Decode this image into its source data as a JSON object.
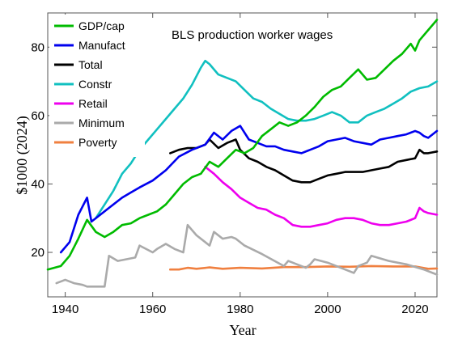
{
  "chart_data": {
    "type": "line",
    "title": "BLS production worker wages",
    "xlabel": "Year",
    "ylabel": "$1000 (2024)",
    "xlim": [
      1936,
      2025
    ],
    "ylim": [
      7,
      90
    ],
    "xticks": [
      1940,
      1960,
      1980,
      2000,
      2020
    ],
    "yticks": [
      20,
      40,
      60,
      80
    ],
    "grid": false,
    "legend_position": "top-left",
    "series": [
      {
        "name": "GDP/cap",
        "color": "#00bb00",
        "x": [
          1936,
          1939,
          1941,
          1943,
          1945,
          1947,
          1949,
          1951,
          1953,
          1955,
          1957,
          1959,
          1961,
          1963,
          1965,
          1967,
          1969,
          1971,
          1973,
          1975,
          1977,
          1979,
          1981,
          1983,
          1985,
          1987,
          1989,
          1991,
          1993,
          1995,
          1997,
          1999,
          2001,
          2003,
          2005,
          2007,
          2009,
          2011,
          2013,
          2015,
          2017,
          2019,
          2020,
          2021,
          2023,
          2025
        ],
        "values": [
          15,
          16,
          19,
          24,
          29.5,
          26,
          24.5,
          26,
          28,
          28.5,
          30,
          31,
          32,
          34,
          37,
          40,
          42,
          43,
          46.5,
          45,
          47.5,
          50,
          49,
          50.5,
          54,
          56,
          58,
          57,
          58,
          60,
          62.5,
          65.5,
          67.5,
          68.5,
          71,
          73.5,
          70.5,
          71,
          73.5,
          76,
          78,
          81,
          79,
          82,
          85,
          88
        ]
      },
      {
        "name": "Manufact",
        "color": "#0000ee",
        "x": [
          1939,
          1941,
          1943,
          1945,
          1946,
          1948,
          1950,
          1953,
          1955,
          1957,
          1960,
          1963,
          1966,
          1969,
          1972,
          1974,
          1976,
          1978,
          1980,
          1982,
          1984,
          1986,
          1988,
          1990,
          1992,
          1994,
          1996,
          1998,
          2000,
          2002,
          2004,
          2006,
          2008,
          2010,
          2012,
          2014,
          2016,
          2018,
          2020,
          2021,
          2022,
          2023,
          2025
        ],
        "values": [
          20,
          23,
          31,
          36,
          29,
          31,
          33,
          36,
          37.5,
          39,
          41,
          44,
          48,
          50,
          51.5,
          55,
          53,
          55.5,
          57,
          53,
          52,
          51,
          51,
          50,
          49.5,
          49,
          50,
          51,
          52.5,
          53,
          53.5,
          52.5,
          52,
          51.5,
          53,
          53.5,
          54,
          54.5,
          55.5,
          55,
          54,
          53.5,
          55.5
        ]
      },
      {
        "name": "Total",
        "color": "#000000",
        "x": [
          1964,
          1966,
          1968,
          1970,
          1972,
          1973,
          1975,
          1977,
          1979,
          1980,
          1982,
          1984,
          1986,
          1988,
          1990,
          1992,
          1994,
          1996,
          1998,
          2000,
          2002,
          2004,
          2006,
          2008,
          2010,
          2012,
          2014,
          2016,
          2018,
          2020,
          2021,
          2022,
          2023,
          2025
        ],
        "values": [
          49,
          50,
          50.5,
          50.5,
          51.5,
          53,
          50.5,
          52,
          53,
          50,
          47.5,
          46.5,
          45,
          44,
          42.5,
          41,
          40.5,
          40.5,
          41.5,
          42.5,
          43,
          43.5,
          43.5,
          43.5,
          44,
          44.5,
          45,
          46.5,
          47,
          47.5,
          50,
          49,
          49,
          49.5
        ]
      },
      {
        "name": "Constr",
        "color": "#11c0c0",
        "x": [
          1947,
          1949,
          1951,
          1953,
          1955,
          1957,
          1959,
          1961,
          1963,
          1965,
          1967,
          1969,
          1971,
          1972,
          1973,
          1975,
          1977,
          1979,
          1981,
          1983,
          1985,
          1987,
          1989,
          1991,
          1993,
          1995,
          1997,
          1999,
          2001,
          2003,
          2005,
          2007,
          2009,
          2011,
          2013,
          2015,
          2017,
          2019,
          2021,
          2023,
          2025
        ],
        "values": [
          30,
          34,
          38,
          43,
          46,
          50,
          53,
          56,
          59,
          62,
          65,
          69,
          74,
          76,
          75,
          72,
          71,
          70,
          67.5,
          65,
          64,
          62,
          60.5,
          59,
          58.5,
          58.5,
          59,
          60,
          61,
          60,
          58,
          58,
          60,
          61,
          62,
          63.5,
          65,
          67,
          68,
          68.5,
          70
        ]
      },
      {
        "name": "Retail",
        "color": "#ee00ee",
        "x": [
          1972,
          1974,
          1976,
          1978,
          1980,
          1982,
          1984,
          1986,
          1988,
          1990,
          1992,
          1994,
          1996,
          1998,
          2000,
          2002,
          2004,
          2006,
          2008,
          2010,
          2012,
          2014,
          2016,
          2018,
          2020,
          2021,
          2022,
          2023,
          2025
        ],
        "values": [
          45,
          43,
          40.5,
          38.5,
          36,
          34.5,
          33,
          32.5,
          31,
          30,
          28,
          27.5,
          27.5,
          28,
          28.5,
          29.5,
          30,
          30,
          29.5,
          28.5,
          28,
          28,
          28.5,
          29,
          30,
          33,
          32,
          31.5,
          31
        ]
      },
      {
        "name": "Minimum",
        "color": "#aaaaaa",
        "x": [
          1938,
          1940,
          1942,
          1944,
          1945,
          1946,
          1949,
          1950,
          1952,
          1954,
          1956,
          1957,
          1960,
          1961,
          1963,
          1965,
          1967,
          1968,
          1970,
          1973,
          1974,
          1976,
          1978,
          1979,
          1981,
          1985,
          1990,
          1991,
          1995,
          1996,
          1997,
          2000,
          2006,
          2007,
          2009,
          2010,
          2014,
          2018,
          2022,
          2025
        ],
        "values": [
          11,
          12,
          11,
          10.5,
          10,
          10,
          10,
          19,
          17.5,
          18,
          18.5,
          22,
          20,
          21,
          22.5,
          21,
          20,
          28,
          25,
          22,
          26,
          24,
          24.5,
          24,
          22,
          19.5,
          16,
          17.5,
          15.5,
          16.5,
          18,
          17,
          14,
          16,
          17,
          19,
          17.5,
          16.5,
          15,
          13.5
        ]
      },
      {
        "name": "Poverty",
        "color": "#f08040",
        "x": [
          1964,
          1966,
          1968,
          1970,
          1973,
          1976,
          1980,
          1985,
          1990,
          1995,
          2000,
          2005,
          2010,
          2015,
          2020,
          2023,
          2025
        ],
        "values": [
          15,
          15,
          15.5,
          15.2,
          15.6,
          15.2,
          15.5,
          15.3,
          15.7,
          15.7,
          15.9,
          15.8,
          16,
          15.9,
          15.9,
          15.2,
          15.3
        ]
      }
    ]
  }
}
